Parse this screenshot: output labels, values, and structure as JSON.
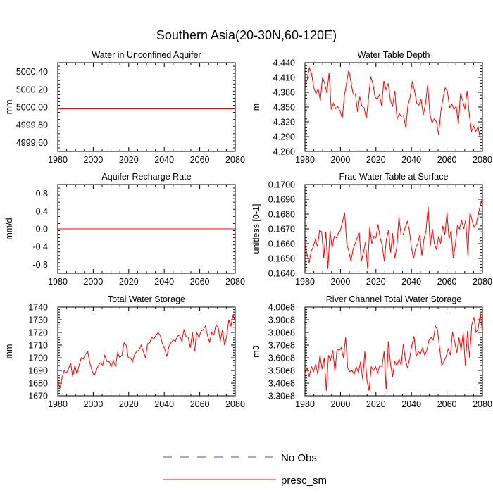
{
  "figure": {
    "title": "Southern Asia(20-30N,60-120E)",
    "line_color": "#ff0000",
    "obs_color": "#4a4aff"
  },
  "legend": {
    "items": [
      {
        "label": "No Obs",
        "style": "dashed",
        "color": "#4a4aff"
      },
      {
        "label": "presc_sm",
        "style": "solid",
        "color": "#ff0000"
      }
    ]
  },
  "chart_data": [
    {
      "type": "line",
      "title": "Water in Unconfined Aquifer",
      "ylabel": "mm",
      "xlim": [
        1980,
        2080
      ],
      "ylim": [
        4999.5,
        5000.5
      ],
      "xticks": [
        1980,
        2000,
        2020,
        2040,
        2060,
        2080
      ],
      "xtick_labels": [
        "1980",
        "2000",
        "2020",
        "2040",
        "2060",
        "2080"
      ],
      "yticks": [
        4999.6,
        4999.8,
        5000.0,
        5000.2,
        5000.4
      ],
      "ytick_labels": [
        "4999.60",
        "4999.80",
        "5000.00",
        "5000.20",
        "5000.40"
      ],
      "series": [
        {
          "constant": 4999.98
        }
      ]
    },
    {
      "type": "line",
      "title": "Water Table Depth",
      "ylabel": "m",
      "xlim": [
        1980,
        2080
      ],
      "ylim": [
        4.26,
        4.44
      ],
      "xticks": [
        1980,
        2000,
        2020,
        2040,
        2060,
        2080
      ],
      "xtick_labels": [
        "1980",
        "2000",
        "2020",
        "2040",
        "2060",
        "2080"
      ],
      "yticks": [
        4.26,
        4.29,
        4.32,
        4.35,
        4.38,
        4.41,
        4.44
      ],
      "ytick_labels": [
        "4.260",
        "4.290",
        "4.320",
        "4.350",
        "4.380",
        "4.410",
        "4.440"
      ],
      "series": [
        {
          "x_start": 1980,
          "values": [
            4.395,
            4.405,
            4.43,
            4.418,
            4.39,
            4.377,
            4.387,
            4.363,
            4.41,
            4.398,
            4.378,
            4.419,
            4.345,
            4.358,
            4.347,
            4.351,
            4.342,
            4.327,
            4.373,
            4.399,
            4.425,
            4.4,
            4.376,
            4.377,
            4.34,
            4.371,
            4.352,
            4.348,
            4.327,
            4.367,
            4.412,
            4.397,
            4.37,
            4.366,
            4.375,
            4.352,
            4.403,
            4.385,
            4.398,
            4.363,
            4.352,
            4.383,
            4.325,
            4.337,
            4.331,
            4.333,
            4.308,
            4.354,
            4.37,
            4.402,
            4.383,
            4.358,
            4.354,
            4.366,
            4.334,
            4.356,
            4.396,
            4.336,
            4.318,
            4.326,
            4.32,
            4.294,
            4.341,
            4.368,
            4.389,
            4.382,
            4.349,
            4.356,
            4.345,
            4.352,
            4.315,
            4.378,
            4.363,
            4.345,
            4.383,
            4.335,
            4.301,
            4.311,
            4.301,
            4.31,
            4.286,
            4.282
          ]
        }
      ]
    },
    {
      "type": "line",
      "title": "Aquifer Recharge Rate",
      "ylabel": "mm/d",
      "xlim": [
        1980,
        2080
      ],
      "ylim": [
        -1.0,
        1.0
      ],
      "xticks": [
        1980,
        2000,
        2020,
        2040,
        2060,
        2080
      ],
      "xtick_labels": [
        "1980",
        "2000",
        "2020",
        "2040",
        "2060",
        "2080"
      ],
      "yticks": [
        -0.8,
        -0.4,
        0.0,
        0.4,
        0.8
      ],
      "ytick_labels": [
        "-0.8",
        "-0.4",
        "0.0",
        "0.4",
        "0.8"
      ],
      "series": [
        {
          "constant": 0.0
        }
      ]
    },
    {
      "type": "line",
      "title": "Frac Water Table at Surface",
      "ylabel": "unitless [0-1]",
      "xlim": [
        1980,
        2080
      ],
      "ylim": [
        0.164,
        0.17
      ],
      "xticks": [
        1980,
        2000,
        2020,
        2040,
        2060,
        2080
      ],
      "xtick_labels": [
        "1980",
        "2000",
        "2020",
        "2040",
        "2060",
        "2080"
      ],
      "yticks": [
        0.164,
        0.165,
        0.166,
        0.167,
        0.168,
        0.169,
        0.17
      ],
      "ytick_labels": [
        "0.1640",
        "0.1650",
        "0.1660",
        "0.1670",
        "0.1680",
        "0.1690",
        "0.1700"
      ],
      "series": [
        {
          "x_start": 1980,
          "values": [
            0.166,
            0.1653,
            0.1647,
            0.1655,
            0.1658,
            0.1663,
            0.1658,
            0.1669,
            0.1668,
            0.165,
            0.1668,
            0.1643,
            0.1669,
            0.1657,
            0.1665,
            0.1664,
            0.1667,
            0.1669,
            0.1675,
            0.1681,
            0.166,
            0.1655,
            0.1648,
            0.1656,
            0.166,
            0.1664,
            0.1667,
            0.1648,
            0.1654,
            0.1661,
            0.1643,
            0.1671,
            0.166,
            0.1665,
            0.1664,
            0.1673,
            0.1664,
            0.1659,
            0.1648,
            0.1663,
            0.1669,
            0.1654,
            0.1667,
            0.165,
            0.1658,
            0.1678,
            0.1666,
            0.1666,
            0.1671,
            0.1675,
            0.1669,
            0.1657,
            0.165,
            0.1657,
            0.166,
            0.1666,
            0.1652,
            0.1663,
            0.1669,
            0.1685,
            0.1658,
            0.167,
            0.166,
            0.1656,
            0.1665,
            0.166,
            0.1672,
            0.1666,
            0.1681,
            0.1663,
            0.1669,
            0.165,
            0.1659,
            0.1672,
            0.167,
            0.1676,
            0.167,
            0.1676,
            0.1652,
            0.1681,
            0.1676,
            0.1671,
            0.1673,
            0.168,
            0.1686,
            0.1691
          ]
        }
      ]
    },
    {
      "type": "line",
      "title": "Total Water Storage",
      "ylabel": "mm",
      "xlim": [
        1980,
        2080
      ],
      "ylim": [
        1670,
        1740
      ],
      "xticks": [
        1980,
        2000,
        2020,
        2040,
        2060,
        2080
      ],
      "xtick_labels": [
        "1980",
        "2000",
        "2020",
        "2040",
        "2060",
        "2080"
      ],
      "yticks": [
        1670,
        1680,
        1690,
        1700,
        1710,
        1720,
        1730,
        1740
      ],
      "ytick_labels": [
        "1670",
        "1680",
        "1690",
        "1700",
        "1710",
        "1720",
        "1730",
        "1740"
      ],
      "series": [
        {
          "x_start": 1980,
          "values": [
            1683,
            1676,
            1684,
            1690,
            1688,
            1691,
            1696,
            1685,
            1694,
            1687,
            1694,
            1700,
            1699,
            1703,
            1705,
            1696,
            1690,
            1686,
            1690,
            1694,
            1696,
            1694,
            1702,
            1697,
            1697,
            1693,
            1698,
            1693,
            1704,
            1700,
            1702,
            1712,
            1710,
            1700,
            1700,
            1697,
            1703,
            1705,
            1706,
            1710,
            1705,
            1700,
            1711,
            1712,
            1716,
            1715,
            1718,
            1720,
            1717,
            1711,
            1707,
            1701,
            1709,
            1712,
            1714,
            1713,
            1717,
            1718,
            1713,
            1722,
            1717,
            1716,
            1708,
            1720,
            1705,
            1720,
            1716,
            1721,
            1722,
            1725,
            1718,
            1712,
            1720,
            1718,
            1726,
            1724,
            1713,
            1722,
            1710,
            1717,
            1730,
            1725,
            1734,
            1728
          ]
        }
      ]
    },
    {
      "type": "line",
      "title": "River Channel Total Water Storage",
      "ylabel": "m3",
      "xlim": [
        1980,
        2080
      ],
      "ylim": [
        330000000,
        400000000
      ],
      "xticks": [
        1980,
        2000,
        2020,
        2040,
        2060,
        2080
      ],
      "xtick_labels": [
        "1980",
        "2000",
        "2020",
        "2040",
        "2060",
        "2080"
      ],
      "yticks": [
        330000000,
        340000000,
        350000000,
        360000000,
        370000000,
        380000000,
        390000000,
        400000000
      ],
      "ytick_labels": [
        "3.30e8",
        "3.40e8",
        "3.50e8",
        "3.60e8",
        "3.70e8",
        "3.80e8",
        "3.90e8",
        "4.00e8"
      ],
      "series": [
        {
          "x_start": 1980,
          "values": [
            348000000,
            352000000,
            345000000,
            353000000,
            349000000,
            355000000,
            347000000,
            362000000,
            351000000,
            360000000,
            334000000,
            362000000,
            358000000,
            366000000,
            349000000,
            367000000,
            366000000,
            368000000,
            360000000,
            376000000,
            352000000,
            349000000,
            350000000,
            347000000,
            353000000,
            348000000,
            357000000,
            343000000,
            365000000,
            342000000,
            334000000,
            353000000,
            350000000,
            353000000,
            348000000,
            354000000,
            353000000,
            365000000,
            335000000,
            373000000,
            355000000,
            345000000,
            357000000,
            354000000,
            359000000,
            354000000,
            371000000,
            358000000,
            352000000,
            360000000,
            370000000,
            377000000,
            361000000,
            365000000,
            363000000,
            368000000,
            362000000,
            366000000,
            374000000,
            376000000,
            374000000,
            385000000,
            382000000,
            367000000,
            354000000,
            357000000,
            361000000,
            367000000,
            362000000,
            380000000,
            373000000,
            364000000,
            376000000,
            366000000,
            380000000,
            354000000,
            381000000,
            360000000,
            386000000,
            392000000,
            380000000,
            383000000,
            395000000,
            380000000
          ]
        }
      ]
    }
  ]
}
